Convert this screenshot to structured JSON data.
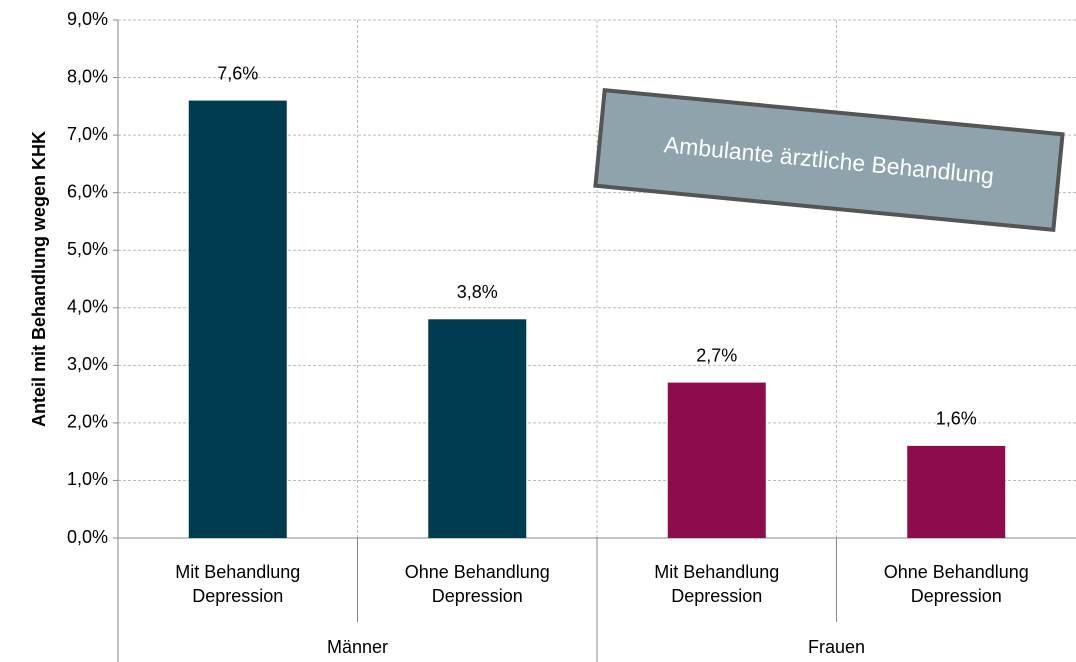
{
  "chart_data": {
    "type": "bar",
    "y_label": "Anteil mit Behandlung wegen KHK",
    "annotation": "Ambulante ärztliche Behandlung",
    "ylim": [
      0,
      9
    ],
    "yticks": [
      {
        "value": 0,
        "label": "0,0%"
      },
      {
        "value": 1,
        "label": "1,0%"
      },
      {
        "value": 2,
        "label": "2,0%"
      },
      {
        "value": 3,
        "label": "3,0%"
      },
      {
        "value": 4,
        "label": "4,0%"
      },
      {
        "value": 5,
        "label": "5,0%"
      },
      {
        "value": 6,
        "label": "6,0%"
      },
      {
        "value": 7,
        "label": "7,0%"
      },
      {
        "value": 8,
        "label": "8,0%"
      },
      {
        "value": 9,
        "label": "9,0%"
      }
    ],
    "grid": true,
    "groups": [
      {
        "name": "Männer",
        "color": "#003c50",
        "categories": [
          "Mit Behandlung Depression",
          "Ohne Behandlung Depression"
        ],
        "values": [
          7.6,
          3.8
        ],
        "value_labels": [
          "7,6%",
          "3,8%"
        ]
      },
      {
        "name": "Frauen",
        "color": "#8c0c4e",
        "categories": [
          "Mit Behandlung Depression",
          "Ohne Behandlung Depression"
        ],
        "values": [
          2.7,
          1.6
        ],
        "value_labels": [
          "2,7%",
          "1,6%"
        ]
      }
    ]
  }
}
